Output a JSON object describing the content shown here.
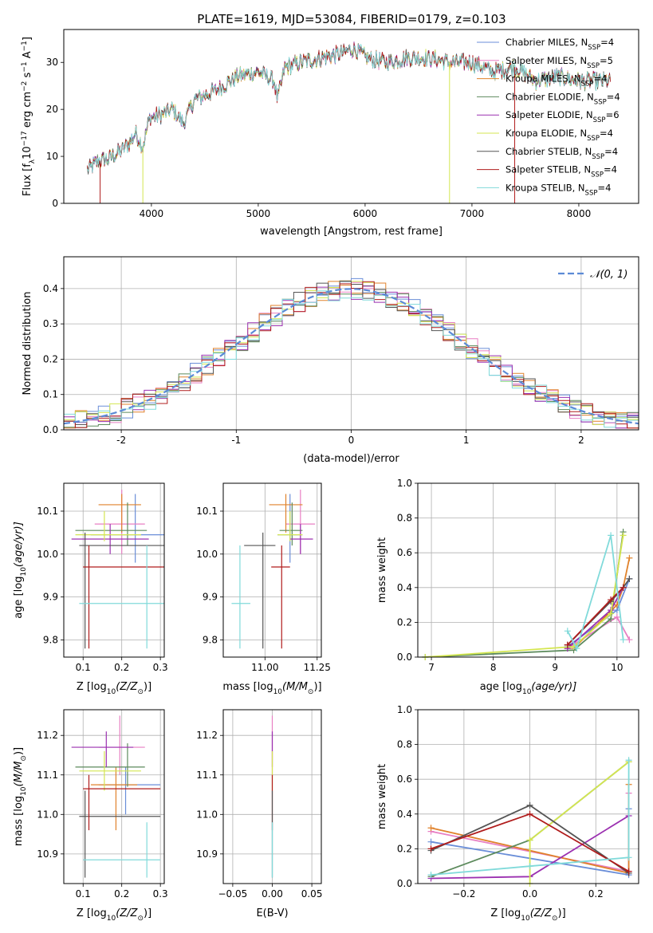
{
  "figure": {
    "title": "PLATE=1619, MJD=53084, FIBERID=0179, z=0.103"
  },
  "colors": {
    "Chabrier MILES": "#6a8ed8",
    "Salpeter MILES": "#e87fc3",
    "Kroupa MILES": "#e0822b",
    "Chabrier ELODIE": "#5c8a5c",
    "Salpeter ELODIE": "#9b30b0",
    "Kroupa ELODIE": "#d4e650",
    "Chabrier STELIB": "#555555",
    "Salpeter STELIB": "#b01c1c",
    "Kroupa STELIB": "#80dada",
    "normal": "#5b8ad6"
  },
  "chart_data": [
    {
      "id": "spectrum",
      "type": "line",
      "title": "PLATE=1619, MJD=53084, FIBERID=0179, z=0.103",
      "xlabel": "wavelength [Angstrom, rest frame]",
      "ylabel_parts": [
        "Flux [f",
        "λ",
        "10",
        "−17",
        " erg cm",
        "−2",
        " s",
        "−1",
        " A",
        "−1",
        "]"
      ],
      "xlim": [
        3180,
        8560
      ],
      "ylim": [
        0,
        37
      ],
      "xticks": [
        4000,
        5000,
        6000,
        7000,
        8000
      ],
      "yticks": [
        0,
        10,
        20,
        30
      ],
      "legend": [
        {
          "label": "Chabrier MILES",
          "n": "4"
        },
        {
          "label": "Salpeter MILES",
          "n": "5"
        },
        {
          "label": "Kroupa MILES",
          "n": "4"
        },
        {
          "label": "Chabrier ELODIE",
          "n": "4"
        },
        {
          "label": "Salpeter ELODIE",
          "n": "6"
        },
        {
          "label": "Kroupa ELODIE",
          "n": "4"
        },
        {
          "label": "Chabrier STELIB",
          "n": "4"
        },
        {
          "label": "Salpeter STELIB",
          "n": "4"
        },
        {
          "label": "Kroupa STELIB",
          "n": "4"
        }
      ],
      "continuum": [
        [
          3400,
          7
        ],
        [
          3500,
          9
        ],
        [
          3600,
          9.5
        ],
        [
          3700,
          11
        ],
        [
          3800,
          13
        ],
        [
          3850,
          15
        ],
        [
          3920,
          12
        ],
        [
          3980,
          18
        ],
        [
          4100,
          19
        ],
        [
          4200,
          20
        ],
        [
          4300,
          17
        ],
        [
          4400,
          22
        ],
        [
          4600,
          24
        ],
        [
          4800,
          27
        ],
        [
          5000,
          28
        ],
        [
          5150,
          26
        ],
        [
          5180,
          22
        ],
        [
          5250,
          29
        ],
        [
          5400,
          30
        ],
        [
          5600,
          31
        ],
        [
          5800,
          32
        ],
        [
          5900,
          33
        ],
        [
          6000,
          31
        ],
        [
          6200,
          30
        ],
        [
          6400,
          31
        ],
        [
          6600,
          31
        ],
        [
          6800,
          30
        ],
        [
          7000,
          30
        ],
        [
          7200,
          28
        ],
        [
          7400,
          29
        ],
        [
          7600,
          26
        ],
        [
          7800,
          27
        ],
        [
          8000,
          26
        ],
        [
          8200,
          26
        ],
        [
          8300,
          26
        ]
      ],
      "drops": [
        {
          "series": "Salpeter STELIB",
          "x": 3520
        },
        {
          "series": "Kroupa ELODIE",
          "x": 3920
        },
        {
          "series": "Kroupa ELODIE",
          "x": 6790
        },
        {
          "series": "Salpeter STELIB",
          "x": 7400
        }
      ]
    },
    {
      "id": "residuals",
      "type": "histogram",
      "xlabel": "(data-model)/error",
      "ylabel": "Normed distribution",
      "xlim": [
        -2.5,
        2.5
      ],
      "ylim": [
        0,
        0.49
      ],
      "xticks": [
        -2,
        -1,
        0,
        1,
        2
      ],
      "yticks": [
        0.0,
        0.1,
        0.2,
        0.3,
        0.4
      ],
      "bin_width": 0.1,
      "curve_label": "𝒩(0, 1)"
    },
    {
      "id": "age_vs_Z",
      "type": "errorbar",
      "xlabel_parts": [
        "Z [log",
        "10",
        "(Z/Z",
        "⊙",
        ")]"
      ],
      "ylabel_parts": [
        "age  [log",
        "10",
        "(age/yr)]"
      ],
      "xlim": [
        0.05,
        0.31
      ],
      "ylim": [
        9.76,
        10.165
      ],
      "xticks": [
        0.1,
        0.2,
        0.3
      ],
      "yticks": [
        9.8,
        9.9,
        10.0,
        10.1
      ],
      "points": [
        {
          "series": "Chabrier MILES",
          "x": 0.235,
          "y": 10.045,
          "xerr": [
            0.12,
            0.35
          ],
          "yerr": [
            9.98,
            10.14
          ]
        },
        {
          "series": "Salpeter MILES",
          "x": 0.2,
          "y": 10.07,
          "xerr": [
            0.13,
            0.26
          ],
          "yerr": [
            10.0,
            10.15
          ]
        },
        {
          "series": "Kroupa MILES",
          "x": 0.2,
          "y": 10.115,
          "xerr": [
            0.14,
            0.25
          ],
          "yerr": [
            10.05,
            10.14
          ]
        },
        {
          "series": "Chabrier ELODIE",
          "x": 0.215,
          "y": 10.055,
          "xerr": [
            0.08,
            0.265
          ],
          "yerr": [
            10.02,
            10.12
          ]
        },
        {
          "series": "Salpeter ELODIE",
          "x": 0.17,
          "y": 10.035,
          "xerr": [
            0.07,
            0.27
          ],
          "yerr": [
            10.0,
            10.07
          ]
        },
        {
          "series": "Kroupa ELODIE",
          "x": 0.155,
          "y": 10.045,
          "xerr": [
            0.08,
            0.25
          ],
          "yerr": [
            10.03,
            10.1
          ]
        },
        {
          "series": "Chabrier STELIB",
          "x": 0.105,
          "y": 10.02,
          "xerr": [
            0.09,
            0.33
          ],
          "yerr": [
            9.78,
            10.05
          ]
        },
        {
          "series": "Salpeter STELIB",
          "x": 0.115,
          "y": 9.97,
          "xerr": [
            0.1,
            0.32
          ],
          "yerr": [
            9.78,
            10.02
          ]
        },
        {
          "series": "Kroupa STELIB",
          "x": 0.265,
          "y": 9.885,
          "xerr": [
            0.09,
            0.33
          ],
          "yerr": [
            9.78,
            10.02
          ]
        }
      ]
    },
    {
      "id": "age_vs_mass",
      "type": "errorbar",
      "xlabel_parts": [
        "mass [log",
        "10",
        "(M/M",
        "⊙",
        ")]"
      ],
      "xlim": [
        10.8,
        11.27
      ],
      "ylim": [
        9.76,
        10.165
      ],
      "xticks": [
        11.0,
        11.25
      ],
      "xtick_labels": [
        "11.00",
        "11.25"
      ],
      "yticks": [
        9.8,
        9.9,
        10.0,
        10.1
      ],
      "points": [
        {
          "series": "Chabrier MILES",
          "x": 11.12,
          "y": 10.045,
          "xerr": [
            11.06,
            11.18
          ],
          "yerr": [
            9.98,
            10.14
          ]
        },
        {
          "series": "Salpeter MILES",
          "x": 11.17,
          "y": 10.07,
          "xerr": [
            11.1,
            11.24
          ],
          "yerr": [
            10.0,
            10.15
          ]
        },
        {
          "series": "Kroupa MILES",
          "x": 11.1,
          "y": 10.115,
          "xerr": [
            11.02,
            11.18
          ],
          "yerr": [
            10.05,
            10.14
          ]
        },
        {
          "series": "Chabrier ELODIE",
          "x": 11.13,
          "y": 10.055,
          "xerr": [
            11.07,
            11.18
          ],
          "yerr": [
            10.02,
            10.12
          ]
        },
        {
          "series": "Salpeter ELODIE",
          "x": 11.17,
          "y": 10.035,
          "xerr": [
            11.12,
            11.23
          ],
          "yerr": [
            10.0,
            10.07
          ]
        },
        {
          "series": "Kroupa ELODIE",
          "x": 11.12,
          "y": 10.045,
          "xerr": [
            11.06,
            11.18
          ],
          "yerr": [
            10.03,
            10.1
          ]
        },
        {
          "series": "Chabrier STELIB",
          "x": 10.99,
          "y": 10.02,
          "xerr": [
            10.9,
            11.05
          ],
          "yerr": [
            9.78,
            10.05
          ]
        },
        {
          "series": "Salpeter STELIB",
          "x": 11.08,
          "y": 9.97,
          "xerr": [
            11.03,
            11.12
          ],
          "yerr": [
            9.78,
            10.02
          ]
        },
        {
          "series": "Kroupa STELIB",
          "x": 10.88,
          "y": 9.885,
          "xerr": [
            10.84,
            10.93
          ],
          "yerr": [
            9.78,
            10.02
          ]
        }
      ]
    },
    {
      "id": "weight_vs_age",
      "type": "line",
      "xlabel_parts": [
        "age  [log",
        "10",
        "(age/yr)]"
      ],
      "ylabel": "mass weight",
      "xlim": [
        6.78,
        10.35
      ],
      "ylim": [
        0,
        1
      ],
      "xticks": [
        7,
        8,
        9,
        10
      ],
      "yticks": [
        0.0,
        0.2,
        0.4,
        0.6,
        0.8,
        1.0
      ],
      "series": [
        {
          "name": "Chabrier MILES",
          "x": [
            9.2,
            10.0,
            10.2
          ],
          "y": [
            0.06,
            0.27,
            0.45
          ]
        },
        {
          "name": "Salpeter MILES",
          "x": [
            9.2,
            10.0,
            10.2
          ],
          "y": [
            0.05,
            0.23,
            0.1
          ]
        },
        {
          "name": "Kroupa MILES",
          "x": [
            9.3,
            10.0,
            10.1,
            10.2
          ],
          "y": [
            0.05,
            0.3,
            0.4,
            0.57
          ]
        },
        {
          "name": "Chabrier ELODIE",
          "x": [
            6.9,
            9.3,
            9.9,
            10.1
          ],
          "y": [
            0.0,
            0.04,
            0.22,
            0.72
          ]
        },
        {
          "name": "Salpeter ELODIE",
          "x": [
            9.2,
            9.9,
            10.1
          ],
          "y": [
            0.05,
            0.27,
            0.4
          ]
        },
        {
          "name": "Kroupa ELODIE",
          "x": [
            6.9,
            9.3,
            9.9,
            10.1
          ],
          "y": [
            0.0,
            0.06,
            0.25,
            0.7
          ]
        },
        {
          "name": "Chabrier STELIB",
          "x": [
            9.2,
            9.9,
            10.1,
            10.2
          ],
          "y": [
            0.07,
            0.32,
            0.4,
            0.45
          ]
        },
        {
          "name": "Salpeter STELIB",
          "x": [
            9.2,
            9.9,
            10.1
          ],
          "y": [
            0.07,
            0.33,
            0.4
          ]
        },
        {
          "name": "Kroupa STELIB",
          "x": [
            9.2,
            9.35,
            9.9,
            10.1
          ],
          "y": [
            0.15,
            0.05,
            0.7,
            0.1
          ]
        }
      ]
    },
    {
      "id": "mass_vs_Z",
      "type": "errorbar",
      "xlabel_parts": [
        "Z [log",
        "10",
        "(Z/Z",
        "⊙",
        ")]"
      ],
      "ylabel_parts": [
        "mass [log",
        "10",
        "(M/M",
        "⊙",
        ")]"
      ],
      "xlim": [
        0.05,
        0.31
      ],
      "ylim": [
        10.825,
        11.265
      ],
      "xticks": [
        0.1,
        0.2,
        0.3
      ],
      "yticks": [
        10.9,
        11.0,
        11.1,
        11.2
      ],
      "points": [
        {
          "series": "Chabrier MILES",
          "x": 0.21,
          "y": 11.075,
          "xerr": [
            0.14,
            0.3
          ],
          "yerr": [
            11.0,
            11.12
          ]
        },
        {
          "series": "Salpeter MILES",
          "x": 0.195,
          "y": 11.17,
          "xerr": [
            0.14,
            0.26
          ],
          "yerr": [
            11.1,
            11.25
          ]
        },
        {
          "series": "Kroupa MILES",
          "x": 0.185,
          "y": 11.075,
          "xerr": [
            0.12,
            0.24
          ],
          "yerr": [
            10.96,
            11.12
          ]
        },
        {
          "series": "Chabrier ELODIE",
          "x": 0.215,
          "y": 11.12,
          "xerr": [
            0.08,
            0.26
          ],
          "yerr": [
            11.07,
            11.18
          ]
        },
        {
          "series": "Salpeter ELODIE",
          "x": 0.16,
          "y": 11.17,
          "xerr": [
            0.07,
            0.23
          ],
          "yerr": [
            11.12,
            11.21
          ]
        },
        {
          "series": "Kroupa ELODIE",
          "x": 0.155,
          "y": 11.11,
          "xerr": [
            0.09,
            0.25
          ],
          "yerr": [
            11.06,
            11.16
          ]
        },
        {
          "series": "Chabrier STELIB",
          "x": 0.105,
          "y": 10.995,
          "xerr": [
            0.09,
            0.3
          ],
          "yerr": [
            10.84,
            11.06
          ]
        },
        {
          "series": "Salpeter STELIB",
          "x": 0.115,
          "y": 11.065,
          "xerr": [
            0.1,
            0.3
          ],
          "yerr": [
            10.96,
            11.1
          ]
        },
        {
          "series": "Kroupa STELIB",
          "x": 0.265,
          "y": 10.885,
          "xerr": [
            0.1,
            0.3
          ],
          "yerr": [
            10.84,
            10.98
          ]
        }
      ]
    },
    {
      "id": "mass_vs_ebv",
      "type": "errorbar",
      "xlabel": "E(B-V)",
      "xlim": [
        -0.062,
        0.062
      ],
      "ylim": [
        10.825,
        11.265
      ],
      "xticks": [
        -0.05,
        0.0,
        0.05
      ],
      "xtick_labels": [
        "−0.05",
        "0.00",
        "0.05"
      ],
      "yticks": [
        10.9,
        11.0,
        11.1,
        11.2
      ],
      "points": [
        {
          "series": "Salpeter MILES",
          "x": 0.0,
          "y": 11.17,
          "yerr": [
            11.1,
            11.25
          ]
        },
        {
          "series": "Salpeter ELODIE",
          "x": 0.0,
          "y": 11.17,
          "yerr": [
            11.12,
            11.21
          ]
        },
        {
          "series": "Kroupa ELODIE",
          "x": 0.0,
          "y": 11.11,
          "yerr": [
            11.06,
            11.16
          ]
        },
        {
          "series": "Salpeter STELIB",
          "x": 0.0,
          "y": 11.065,
          "yerr": [
            10.96,
            11.1
          ]
        },
        {
          "series": "Chabrier STELIB",
          "x": 0.0,
          "y": 10.995,
          "yerr": [
            10.84,
            11.06
          ]
        },
        {
          "series": "Kroupa STELIB",
          "x": 0.0,
          "y": 10.885,
          "yerr": [
            10.84,
            10.98
          ]
        }
      ]
    },
    {
      "id": "weight_vs_Z",
      "type": "line",
      "xlabel_parts": [
        "Z [log",
        "10",
        "(Z/Z",
        "⊙",
        ")]"
      ],
      "ylabel": "mass weight",
      "xlim": [
        -0.34,
        0.33
      ],
      "ylim": [
        0,
        1
      ],
      "xticks": [
        -0.2,
        0.0,
        0.2
      ],
      "xtick_labels": [
        "−0.2",
        "0.0",
        "0.2"
      ],
      "yticks": [
        0.0,
        0.2,
        0.4,
        0.6,
        0.8,
        1.0
      ],
      "series": [
        {
          "name": "Chabrier MILES",
          "x": [
            -0.3,
            0.3,
            0.3
          ],
          "y": [
            0.24,
            0.05,
            0.43
          ]
        },
        {
          "name": "Salpeter MILES",
          "x": [
            -0.3,
            0.3,
            0.3
          ],
          "y": [
            0.3,
            0.07,
            0.52
          ]
        },
        {
          "name": "Kroupa MILES",
          "x": [
            -0.3,
            0.3,
            0.3
          ],
          "y": [
            0.32,
            0.06,
            0.57
          ]
        },
        {
          "name": "Chabrier ELODIE",
          "x": [
            -0.3,
            0.0,
            0.3
          ],
          "y": [
            0.04,
            0.25,
            0.7
          ]
        },
        {
          "name": "Salpeter ELODIE",
          "x": [
            -0.3,
            0.0,
            0.3
          ],
          "y": [
            0.03,
            0.04,
            0.39
          ]
        },
        {
          "name": "Kroupa ELODIE",
          "x": [
            0.0,
            0.0,
            0.3
          ],
          "y": [
            0.0,
            0.25,
            0.7
          ]
        },
        {
          "name": "Chabrier STELIB",
          "x": [
            -0.3,
            0.0,
            0.3
          ],
          "y": [
            0.19,
            0.45,
            0.06
          ]
        },
        {
          "name": "Salpeter STELIB",
          "x": [
            -0.3,
            0.0,
            0.3
          ],
          "y": [
            0.2,
            0.4,
            0.07
          ]
        },
        {
          "name": "Kroupa STELIB",
          "x": [
            -0.3,
            0.0,
            0.3,
            0.3
          ],
          "y": [
            0.05,
            0.1,
            0.15,
            0.71
          ]
        }
      ]
    }
  ]
}
